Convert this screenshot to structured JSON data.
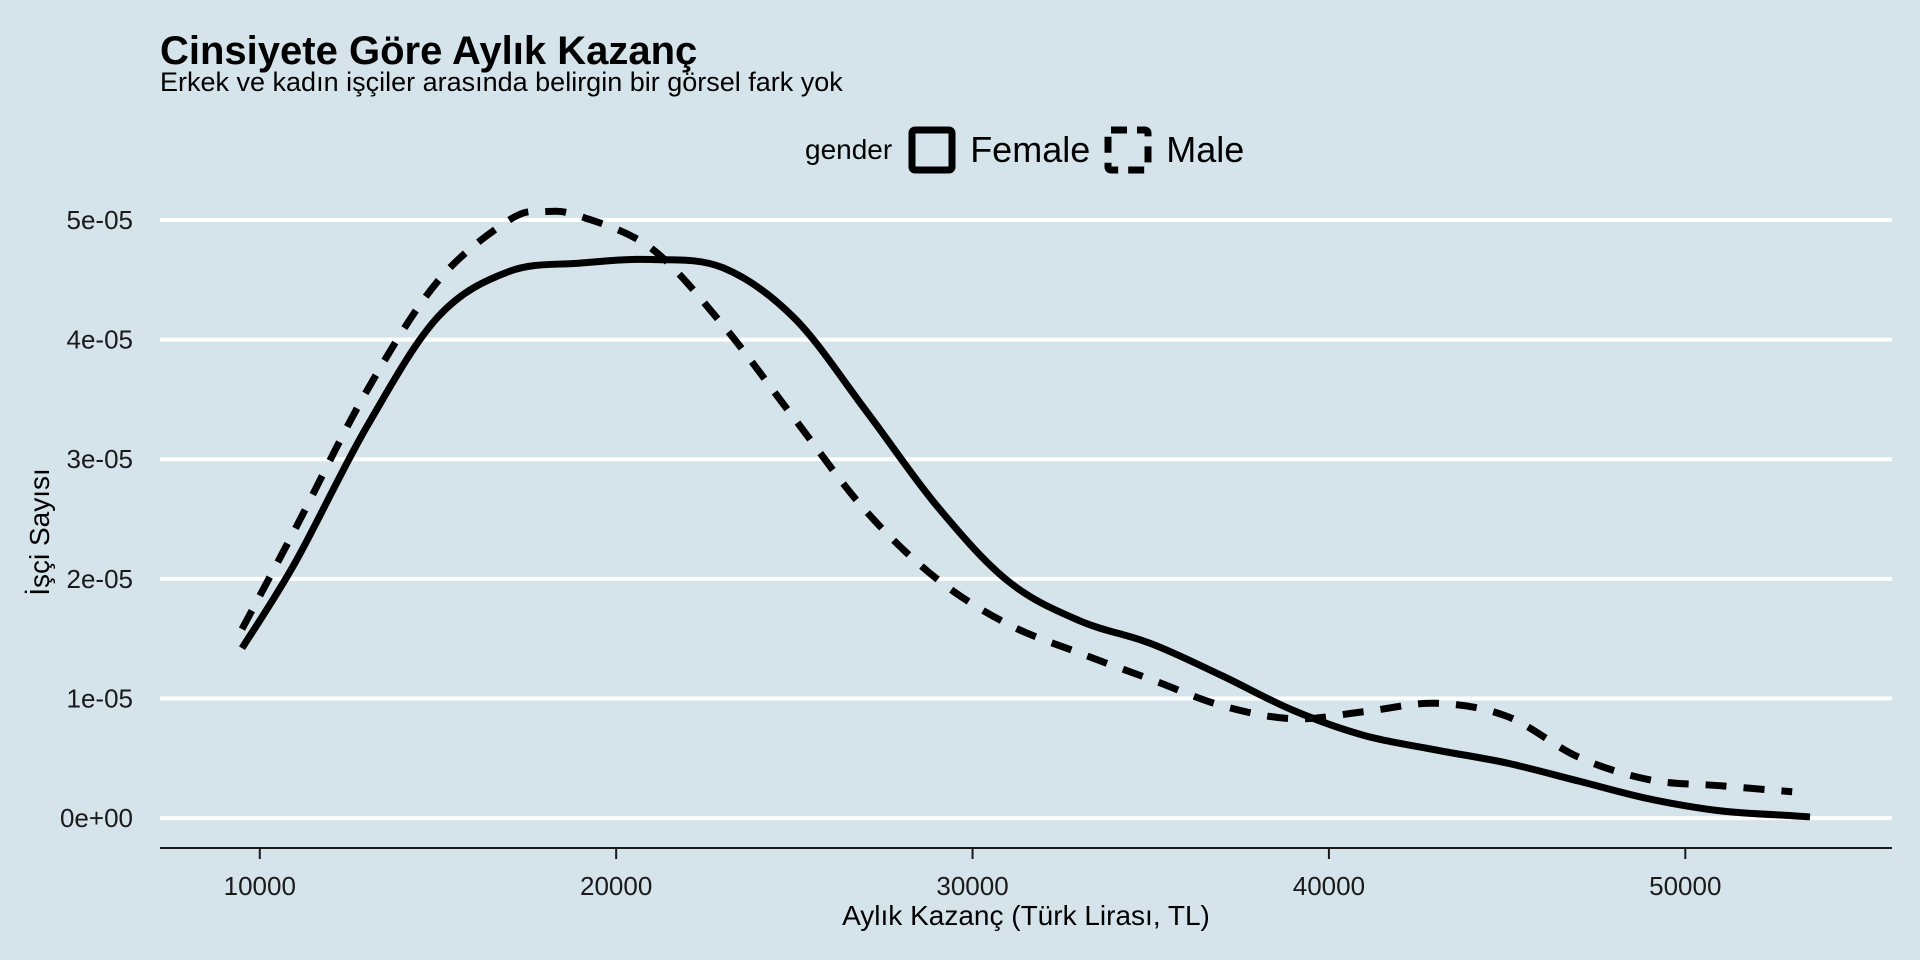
{
  "chart_data": {
    "type": "line",
    "title": "Cinsiyete Göre Aylık Kazanç",
    "subtitle": "Erkek ve kadın işçiler arasında belirgin bir görsel fark yok",
    "xlabel": "Aylık Kazanç (Türk Lirası, TL)",
    "ylabel": "İşçi Sayısı",
    "xlim": [
      7200,
      55800
    ],
    "ylim": [
      -2.5e-06,
      5e-05
    ],
    "x_ticks": [
      10000,
      20000,
      30000,
      40000,
      50000
    ],
    "x_tick_labels": [
      "10000",
      "20000",
      "30000",
      "40000",
      "50000"
    ],
    "y_ticks": [
      0,
      1e-05,
      2e-05,
      3e-05,
      4e-05,
      5e-05
    ],
    "y_tick_labels": [
      "0e+00",
      "1e-05",
      "2e-05",
      "3e-05",
      "4e-05",
      "5e-05"
    ],
    "grid": "horizontal",
    "legend": {
      "title": "gender",
      "placement": "top"
    },
    "series": [
      {
        "name": "Female",
        "line_style": "solid",
        "x": [
          9500,
          11000,
          13000,
          15000,
          17000,
          19000,
          21000,
          23000,
          25000,
          27000,
          29000,
          31000,
          33000,
          35000,
          37000,
          39000,
          41000,
          43000,
          45000,
          47000,
          49000,
          51000,
          53000,
          53500
        ],
        "y": [
          1.42e-05,
          2.14e-05,
          3.27e-05,
          4.19e-05,
          4.57e-05,
          4.64e-05,
          4.67e-05,
          4.6e-05,
          4.18e-05,
          3.41e-05,
          2.61e-05,
          1.98e-05,
          1.65e-05,
          1.46e-05,
          1.19e-05,
          9e-06,
          6.9e-06,
          5.7e-06,
          4.6e-06,
          3.1e-06,
          1.6e-06,
          6e-07,
          2e-07,
          1e-07
        ]
      },
      {
        "name": "Male",
        "line_style": "dashed",
        "x": [
          9500,
          11000,
          13000,
          15000,
          17000,
          18000,
          19000,
          21000,
          23000,
          25000,
          27000,
          29000,
          31000,
          33000,
          35000,
          37000,
          39000,
          41000,
          43000,
          45000,
          47000,
          49000,
          51000,
          53000
        ],
        "y": [
          1.58e-05,
          2.42e-05,
          3.57e-05,
          4.49e-05,
          5e-05,
          5.07e-05,
          5.03e-05,
          4.76e-05,
          4.12e-05,
          3.34e-05,
          2.57e-05,
          2e-05,
          1.62e-05,
          1.38e-05,
          1.16e-05,
          9.4e-06,
          8.3e-06,
          8.9e-06,
          9.6e-06,
          8.5e-06,
          5.1e-06,
          3.2e-06,
          2.7e-06,
          2.2e-06
        ]
      }
    ]
  }
}
